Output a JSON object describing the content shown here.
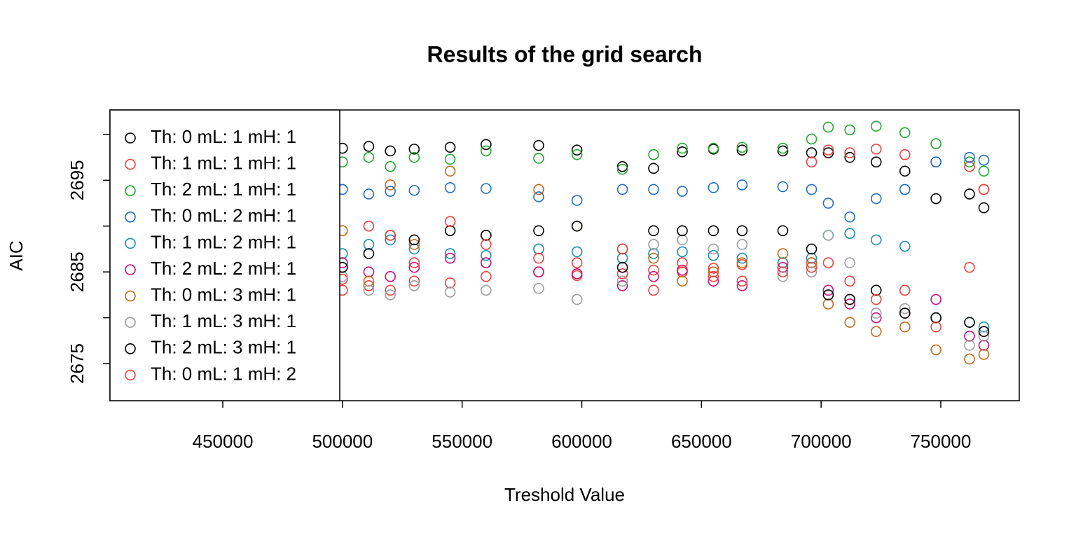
{
  "chart_data": {
    "type": "scatter",
    "title": "Results of the grid search",
    "x_label": "Treshold Value",
    "y_label": "AIC",
    "xlim": [
      402869,
      782787
    ],
    "ylim": [
      2670.95,
      2702.67
    ],
    "xticks": [
      450000,
      500000,
      550000,
      600000,
      650000,
      700000,
      750000
    ],
    "yticks": [
      2675,
      2685,
      2695
    ],
    "yminor_ticks": [
      2680,
      2690,
      2700
    ],
    "grid": false,
    "legend": "top-left",
    "x": [
      500000,
      511000,
      520000,
      530000,
      545000,
      560000,
      582000,
      598000,
      617000,
      630000,
      642000,
      655000,
      667000,
      684000,
      696000,
      703000,
      712000,
      723000,
      735000,
      748000,
      762000,
      768000
    ],
    "series": [
      {
        "name": "Th: 0 mL: 1 mH: 1",
        "color": "#000000",
        "values": [
          2698.5,
          2698.7,
          2698.2,
          2698.4,
          2698.6,
          2698.9,
          2698.8,
          2698.3,
          2696.5,
          2696.3,
          2698.1,
          2698.4,
          2698.3,
          2698.2,
          2698.0,
          2698.0,
          2697.5,
          2697.0,
          2696.0,
          2693.0,
          2693.5,
          2692.0
        ]
      },
      {
        "name": "Th: 1 mL: 1 mH: 1",
        "color": "#f0413c",
        "values": [
          2684.2,
          2683.5,
          2683.0,
          2684.0,
          2683.8,
          2684.5,
          2685.0,
          2684.6,
          2684.8,
          2685.2,
          2685.0,
          2685.4,
          2685.8,
          2686.0,
          2697.0,
          2698.3,
          2698.0,
          2698.4,
          2697.8,
          2697.0,
          2696.5,
          2694.0
        ]
      },
      {
        "name": "Th: 2 mL: 1 mH: 1",
        "color": "#22aa2e",
        "values": [
          2697.0,
          2697.5,
          2696.5,
          2697.5,
          2697.3,
          2698.2,
          2697.4,
          2697.8,
          2696.2,
          2697.8,
          2698.5,
          2698.5,
          2698.6,
          2698.5,
          2699.5,
          2700.8,
          2700.5,
          2700.9,
          2700.2,
          2699.0,
          2697.0,
          2696.0
        ]
      },
      {
        "name": "Th: 0 mL: 2 mH: 1",
        "color": "#1f6fc6",
        "values": [
          2694.0,
          2693.5,
          2693.8,
          2693.9,
          2694.2,
          2694.1,
          2693.2,
          2692.8,
          2694.0,
          2694.0,
          2693.8,
          2694.2,
          2694.5,
          2694.3,
          2694.0,
          2692.5,
          2691.0,
          2693.0,
          2694.0,
          2697.0,
          2697.5,
          2697.2
        ]
      },
      {
        "name": "Th: 1 mL: 2 mH: 1",
        "color": "#1a8fae",
        "values": [
          2687.0,
          2688.0,
          2688.5,
          2687.5,
          2687.0,
          2686.8,
          2687.5,
          2687.2,
          2686.5,
          2687.0,
          2687.2,
          2686.8,
          2686.5,
          2686.0,
          2686.5,
          2689.0,
          2689.2,
          2688.5,
          2687.8,
          2680.0,
          2679.5,
          2679.0
        ]
      },
      {
        "name": "Th: 2 mL: 2 mH: 1",
        "color": "#c8107a",
        "values": [
          2686.0,
          2685.0,
          2684.5,
          2685.5,
          2686.5,
          2686.0,
          2685.0,
          2684.8,
          2683.5,
          2684.5,
          2685.2,
          2684.0,
          2683.5,
          2685.5,
          2686.0,
          2683.0,
          2681.5,
          2680.0,
          2680.5,
          2682.0,
          2678.0,
          2677.0
        ]
      },
      {
        "name": "Th: 0 mL: 3 mH: 1",
        "color": "#c46a1c",
        "values": [
          2689.5,
          2684.0,
          2694.5,
          2688.0,
          2696.0,
          2689.0,
          2694.0,
          2690.0,
          2687.5,
          2686.5,
          2684.0,
          2685.0,
          2686.0,
          2687.0,
          2686.0,
          2681.5,
          2679.5,
          2678.5,
          2679.0,
          2676.5,
          2675.5,
          2676.0
        ]
      },
      {
        "name": "Th: 1 mL: 3 mH: 1",
        "color": "#9e9e9e",
        "values": [
          2684.5,
          2683.0,
          2682.5,
          2683.5,
          2682.8,
          2683.0,
          2683.2,
          2682.0,
          2684.0,
          2688.0,
          2688.5,
          2687.5,
          2688.0,
          2684.5,
          2685.0,
          2689.0,
          2686.0,
          2680.5,
          2681.0,
          2680.0,
          2677.0,
          2678.0
        ]
      },
      {
        "name": "Th: 2 mL: 3 mH: 1",
        "color": "#000000",
        "values": [
          2685.5,
          2687.0,
          2689.0,
          2688.5,
          2689.5,
          2689.0,
          2689.5,
          2690.0,
          2685.5,
          2689.5,
          2689.5,
          2689.5,
          2689.5,
          2689.5,
          2687.5,
          2682.5,
          2682.0,
          2683.0,
          2680.5,
          2680.0,
          2679.5,
          2678.5
        ]
      },
      {
        "name": "Th: 0 mL: 1 mH: 2",
        "color": "#f0413c",
        "values": [
          2683.0,
          2690.0,
          2689.0,
          2686.0,
          2690.5,
          2688.0,
          2686.5,
          2686.0,
          2687.5,
          2683.0,
          2686.0,
          2684.5,
          2684.0,
          2685.0,
          2685.5,
          2686.0,
          2684.0,
          2682.0,
          2683.0,
          2679.0,
          2685.5,
          2694.0
        ]
      }
    ]
  }
}
